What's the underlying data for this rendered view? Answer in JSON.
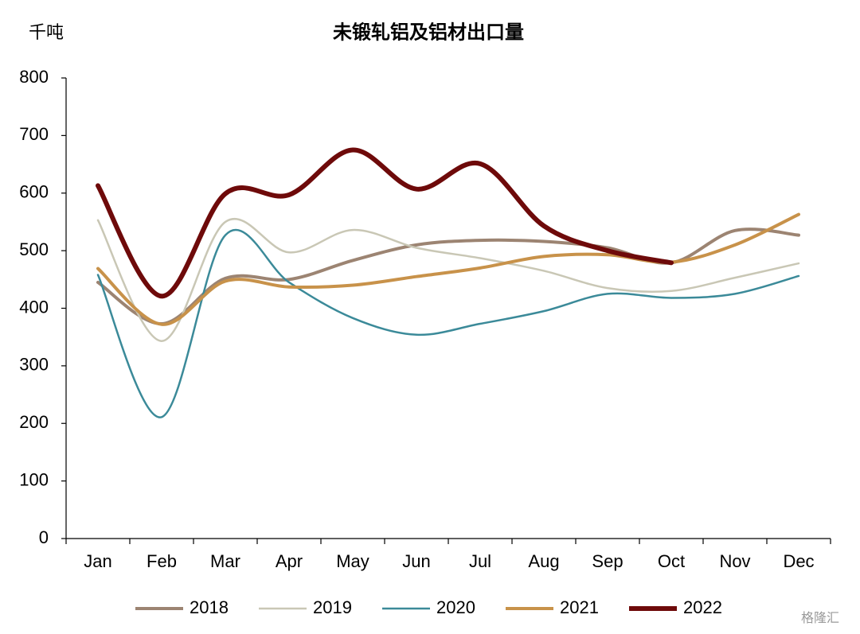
{
  "chart_data": {
    "type": "line",
    "title": "未锻轧铝及铝材出口量",
    "y_label": "千吨",
    "watermark": "格隆汇",
    "categories": [
      "Jan",
      "Feb",
      "Mar",
      "Apr",
      "May",
      "Jun",
      "Jul",
      "Aug",
      "Sep",
      "Oct",
      "Nov",
      "Dec"
    ],
    "series": [
      {
        "name": "2018",
        "color": "#9c8472",
        "values": [
          445,
          373,
          452,
          450,
          483,
          510,
          518,
          516,
          505,
          479,
          535,
          527
        ]
      },
      {
        "name": "2019",
        "color": "#c9c7b5",
        "values": [
          553,
          343,
          550,
          497,
          536,
          505,
          487,
          465,
          435,
          430,
          453,
          478
        ]
      },
      {
        "name": "2020",
        "color": "#3b8a99",
        "values": [
          458,
          211,
          527,
          445,
          383,
          354,
          373,
          395,
          425,
          418,
          425,
          456
        ]
      },
      {
        "name": "2021",
        "color": "#c8924a",
        "values": [
          469,
          372,
          447,
          437,
          440,
          455,
          470,
          490,
          493,
          480,
          510,
          563
        ]
      },
      {
        "name": "2022",
        "color": "#6e0a0a",
        "values": [
          613,
          421,
          599,
          597,
          675,
          607,
          651,
          543,
          500,
          479,
          null,
          null
        ]
      }
    ],
    "ylim": [
      0,
      800
    ],
    "yticks": [
      0,
      100,
      200,
      300,
      400,
      500,
      600,
      700,
      800
    ],
    "legend": "bottom"
  }
}
